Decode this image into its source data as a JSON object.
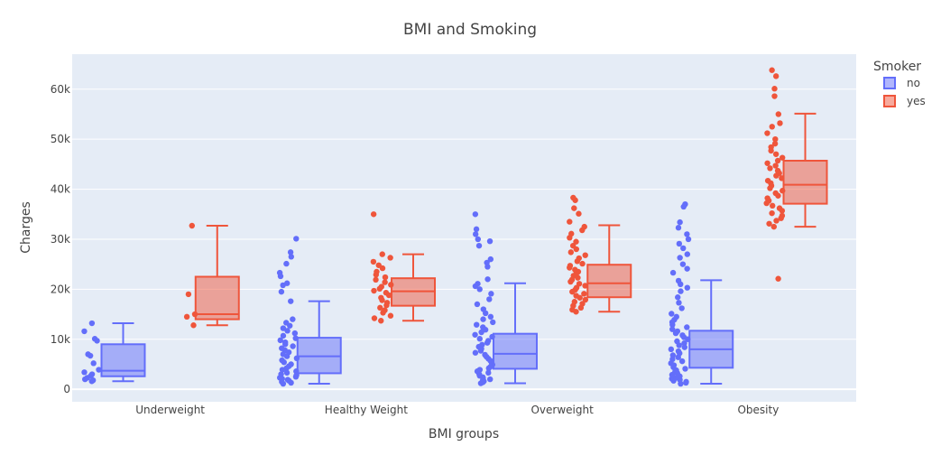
{
  "chart_data": {
    "type": "box",
    "title": "BMI and Smoking",
    "xlabel": "BMI groups",
    "ylabel": "Charges",
    "categories": [
      "Underweight",
      "Healthy Weight",
      "Overweight",
      "Obesity"
    ],
    "ylim": [
      -2500,
      67000
    ],
    "yticks": [
      0,
      10000,
      20000,
      30000,
      40000,
      50000,
      60000
    ],
    "ytick_labels": [
      "0",
      "10k",
      "20k",
      "30k",
      "40k",
      "50k",
      "60k"
    ],
    "grid": true,
    "boxpoints": "all",
    "legend": {
      "title": "Smoker",
      "placement": "top-right"
    },
    "series": [
      {
        "name": "no",
        "color": "#636EFA",
        "boxes": [
          {
            "q1": 2600,
            "median": 3700,
            "q3": 9000,
            "lower": 1600,
            "upper": 13200,
            "points": [
              1600,
              1800,
              2000,
              2300,
              2700,
              3000,
              3400,
              3900,
              5200,
              6700,
              7000,
              9700,
              10100,
              11600,
              13200
            ]
          },
          {
            "q1": 3200,
            "median": 6600,
            "q3": 10300,
            "lower": 1100,
            "upper": 17600,
            "points": [
              1100,
              1300,
              1500,
              1700,
              1900,
              2100,
              2300,
              2500,
              2800,
              3000,
              3300,
              3600,
              3900,
              4200,
              4600,
              5000,
              5400,
              5800,
              6200,
              6600,
              7000,
              7400,
              7800,
              8200,
              8600,
              9000,
              9400,
              9800,
              10200,
              10700,
              11200,
              11700,
              12200,
              12700,
              13300,
              14000,
              17600,
              19500,
              20800,
              21200,
              22600,
              23300,
              25100,
              26500,
              27400,
              30100
            ]
          },
          {
            "q1": 4100,
            "median": 7100,
            "q3": 11100,
            "lower": 1200,
            "upper": 21200,
            "points": [
              1200,
              1400,
              1600,
              1800,
              2000,
              2200,
              2400,
              2700,
              3000,
              3300,
              3600,
              3900,
              4200,
              4500,
              4900,
              5300,
              5700,
              6100,
              6500,
              6900,
              7300,
              7700,
              8100,
              8500,
              8900,
              9300,
              9700,
              10100,
              10500,
              10900,
              11400,
              11900,
              12400,
              12900,
              13400,
              14000,
              14500,
              15200,
              16000,
              17000,
              18000,
              19100,
              20000,
              20600,
              21100,
              22000,
              24500,
              25300,
              26000,
              28700,
              29600,
              30000,
              31000,
              32000,
              35000
            ]
          },
          {
            "q1": 4300,
            "median": 8000,
            "q3": 11700,
            "lower": 1100,
            "upper": 21800,
            "points": [
              1100,
              1300,
              1500,
              1700,
              1900,
              2100,
              2300,
              2600,
              2900,
              3200,
              3500,
              3800,
              4100,
              4400,
              4800,
              5200,
              5600,
              6000,
              6400,
              6800,
              7200,
              7600,
              8000,
              8400,
              8800,
              9200,
              9600,
              10000,
              10400,
              10800,
              11200,
              11600,
              12000,
              12400,
              12900,
              13400,
              13900,
              14500,
              15100,
              16200,
              17300,
              18400,
              19600,
              20300,
              21000,
              21700,
              23300,
              24100,
              25000,
              26300,
              27000,
              28200,
              29100,
              30000,
              31000,
              32300,
              33400,
              36500,
              37000
            ]
          }
        ]
      },
      {
        "name": "yes",
        "color": "#EF553B",
        "boxes": [
          {
            "q1": 14000,
            "median": 15000,
            "q3": 22500,
            "lower": 12800,
            "upper": 32700,
            "points": [
              12800,
              14500,
              15000,
              19000,
              32700
            ]
          },
          {
            "q1": 16700,
            "median": 19600,
            "q3": 22200,
            "lower": 13700,
            "upper": 27000,
            "points": [
              13700,
              14200,
              14700,
              15300,
              15800,
              16300,
              16800,
              17300,
              17800,
              18300,
              18800,
              19300,
              19700,
              20100,
              20500,
              20900,
              21400,
              21900,
              22400,
              22900,
              23500,
              24200,
              24800,
              25500,
              26300,
              27000,
              35000
            ]
          },
          {
            "q1": 18400,
            "median": 21200,
            "q3": 24900,
            "lower": 15500,
            "upper": 32800,
            "points": [
              15500,
              15900,
              16300,
              16700,
              17100,
              17500,
              17900,
              18300,
              18700,
              19100,
              19500,
              19900,
              20300,
              20700,
              21100,
              21500,
              21900,
              22300,
              22700,
              23100,
              23500,
              23900,
              24300,
              24700,
              25100,
              25600,
              26200,
              26800,
              27400,
              28000,
              28700,
              29500,
              30300,
              31100,
              31800,
              32500,
              33500,
              35100,
              36200,
              37800,
              38300
            ]
          },
          {
            "q1": 37100,
            "median": 40900,
            "q3": 45700,
            "lower": 32500,
            "upper": 55100,
            "points": [
              22100,
              32500,
              33100,
              33700,
              34200,
              34700,
              35200,
              35700,
              36200,
              36700,
              37200,
              37700,
              38200,
              38700,
              39200,
              39700,
              40200,
              40700,
              41200,
              41700,
              42200,
              42700,
              43200,
              43700,
              44200,
              44700,
              45200,
              45700,
              46300,
              47000,
              47700,
              48400,
              49100,
              50000,
              51200,
              52500,
              53200,
              55000,
              58600,
              60100,
              62600,
              63800
            ]
          }
        ]
      }
    ]
  }
}
